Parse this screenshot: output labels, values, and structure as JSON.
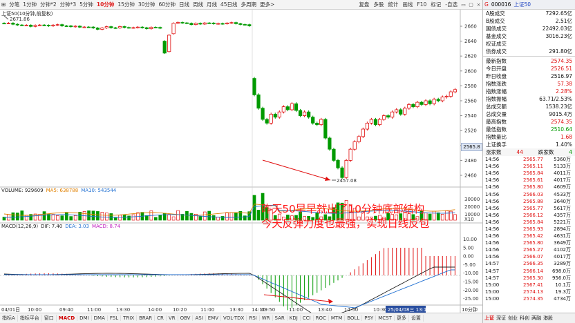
{
  "toolbar": {
    "items": [
      "分笔",
      "1分钟",
      "分钟*2",
      "分钟*3",
      "5分钟",
      "10分钟",
      "15分钟",
      "30分钟",
      "60分钟",
      "日线",
      "周线",
      "月线",
      "45日线",
      "多周期",
      "更多>"
    ],
    "active_index": 5,
    "right_items": [
      "复盘",
      "多股",
      "统计",
      "画线",
      "F10",
      "标记",
      "-自选"
    ],
    "close_glyph": "×"
  },
  "price_panel": {
    "legend": "上证50(10分钟,前复权)",
    "max_label": "2671.86",
    "min_label": "2457.08",
    "current_box": "2565.8",
    "y_ticks": [
      "2660",
      "2640",
      "2620",
      "2600",
      "2580",
      "2560",
      "2540",
      "2520",
      "2500",
      "2480",
      "2460"
    ]
  },
  "volume_panel": {
    "legend_name": "VOLUME: 929609",
    "ma5": "MA5: 638788",
    "ma10": "MA10: 543544",
    "y_ticks": [
      "30000",
      "20000",
      "10000",
      "X10"
    ]
  },
  "macd_panel": {
    "legend_name": "MACD(12,26,9)",
    "dif": "DIF: 7.40",
    "dea": "DEA: 3.03",
    "macd": "MACD: 8.74",
    "y_ticks": [
      "10.00",
      "5.00",
      "0.00",
      "-5.00",
      "-10.00",
      "-15.00",
      "-20.00",
      "-25.00"
    ]
  },
  "time_axis": {
    "labels": [
      "04/01日",
      "10:00",
      "09:40",
      "11:00",
      "13:30",
      "14:00",
      "10:20",
      "11:00",
      "13:30",
      "14:10",
      "09:50",
      "11:00",
      "13:40",
      "14:50",
      "10:30"
    ],
    "cursor_label": "25/04/08三 13:10",
    "right_label": "10分钟"
  },
  "annotation": {
    "line1": "昨天50早早就出了10分钟底部结构",
    "line2": "今天反弹力度也最强，实现日线反包"
  },
  "bottom_strip": {
    "items": [
      "指标A",
      "指标平台",
      "窗口",
      "MACD",
      "DMI",
      "DMA",
      "FSL",
      "TRIX",
      "BRAR",
      "CR",
      "VR",
      "OBV",
      "ASI",
      "EMV",
      "VOL-TDX",
      "RSI",
      "WR",
      "SAR",
      "KDJ",
      "CCI",
      "ROC",
      "MTM",
      "BOLL",
      "PSY",
      "MCST",
      "更多",
      "设置"
    ],
    "active_index": 3,
    "sub_items": [
      "扩展",
      "关联报价",
      "财报图"
    ]
  },
  "right_panel": {
    "header_code": "000016",
    "header_name": "上证50",
    "header_marker": "G",
    "stats": [
      {
        "label": "A股成交",
        "value": "7292.65亿",
        "color": "blk"
      },
      {
        "label": "B股成交",
        "value": "2.51亿",
        "color": "blk"
      },
      {
        "label": "国债成交",
        "value": "22492.03亿",
        "color": "blk"
      },
      {
        "label": "基金成交",
        "value": "3016.23亿",
        "color": "blk"
      },
      {
        "label": "权证成交",
        "value": "",
        "color": "blk"
      },
      {
        "label": "债券成交",
        "value": "291.80亿",
        "color": "blk"
      }
    ],
    "quotes": [
      {
        "label": "最新指数",
        "value": "2574.35",
        "color": "red"
      },
      {
        "label": "今日开盘",
        "value": "2526.51",
        "color": "red"
      },
      {
        "label": "昨日收盘",
        "value": "2516.97",
        "color": "blk"
      },
      {
        "label": "指数涨跌",
        "value": "57.38",
        "color": "red"
      },
      {
        "label": "指数涨幅",
        "value": "2.28%",
        "color": "red"
      },
      {
        "label": "指数振幅",
        "value": "63.71/2.53%",
        "color": "blk"
      },
      {
        "label": "总成交额",
        "value": "1538.23亿",
        "color": "blk"
      },
      {
        "label": "总成交量",
        "value": "9015.4万",
        "color": "blk"
      },
      {
        "label": "最高指数",
        "value": "2574.35",
        "color": "red"
      },
      {
        "label": "最低指数",
        "value": "2510.64",
        "color": "green"
      },
      {
        "label": "指数量比",
        "value": "1.68",
        "color": "red"
      },
      {
        "label": "上证换手",
        "value": "1.40%",
        "color": "blk"
      }
    ],
    "updown": {
      "up_label": "涨家数",
      "up_value": "44",
      "down_label": "跌家数",
      "down_value": "4"
    },
    "ticks": [
      {
        "t": "14:56",
        "p": "2565.77",
        "v": "5360万"
      },
      {
        "t": "14:56",
        "p": "2565.11",
        "v": "5133万"
      },
      {
        "t": "14:56",
        "p": "2565.84",
        "v": "4011万"
      },
      {
        "t": "14:56",
        "p": "2565.61",
        "v": "4017万"
      },
      {
        "t": "14:56",
        "p": "2565.80",
        "v": "4609万"
      },
      {
        "t": "14:56",
        "p": "2566.03",
        "v": "4533万"
      },
      {
        "t": "14:56",
        "p": "2565.88",
        "v": "3640万"
      },
      {
        "t": "14:56",
        "p": "2565.77",
        "v": "5617万"
      },
      {
        "t": "14:56",
        "p": "2566.12",
        "v": "4357万"
      },
      {
        "t": "14:56",
        "p": "2565.84",
        "v": "5221万"
      },
      {
        "t": "14:56",
        "p": "2565.93",
        "v": "2894万"
      },
      {
        "t": "14:56",
        "p": "2565.42",
        "v": "4631万"
      },
      {
        "t": "14:56",
        "p": "2565.80",
        "v": "3649万"
      },
      {
        "t": "14:56",
        "p": "2565.27",
        "v": "4102万"
      },
      {
        "t": "14:56",
        "p": "2566.07",
        "v": "4017万"
      },
      {
        "t": "14:57",
        "p": "2566.35",
        "v": "3289万"
      },
      {
        "t": "14:57",
        "p": "2566.14",
        "v": "698.0万"
      },
      {
        "t": "14:57",
        "p": "2565.30",
        "v": "956.0万"
      },
      {
        "t": "15:00",
        "p": "2567.41",
        "v": "10.1万"
      },
      {
        "t": "15:00",
        "p": "2574.13",
        "v": "19.3万"
      },
      {
        "t": "15:00",
        "p": "2574.35",
        "v": "4734万"
      }
    ],
    "footer": [
      "上证",
      "深证",
      "创业",
      "科创",
      "两融",
      "港股"
    ]
  },
  "colors": {
    "up": "#e01010",
    "down": "#009a00",
    "ma5": "#e08000",
    "ma10": "#1f6fd1",
    "dif": "#222222",
    "dea": "#1f6fd1",
    "arrow": "#e01010"
  }
}
